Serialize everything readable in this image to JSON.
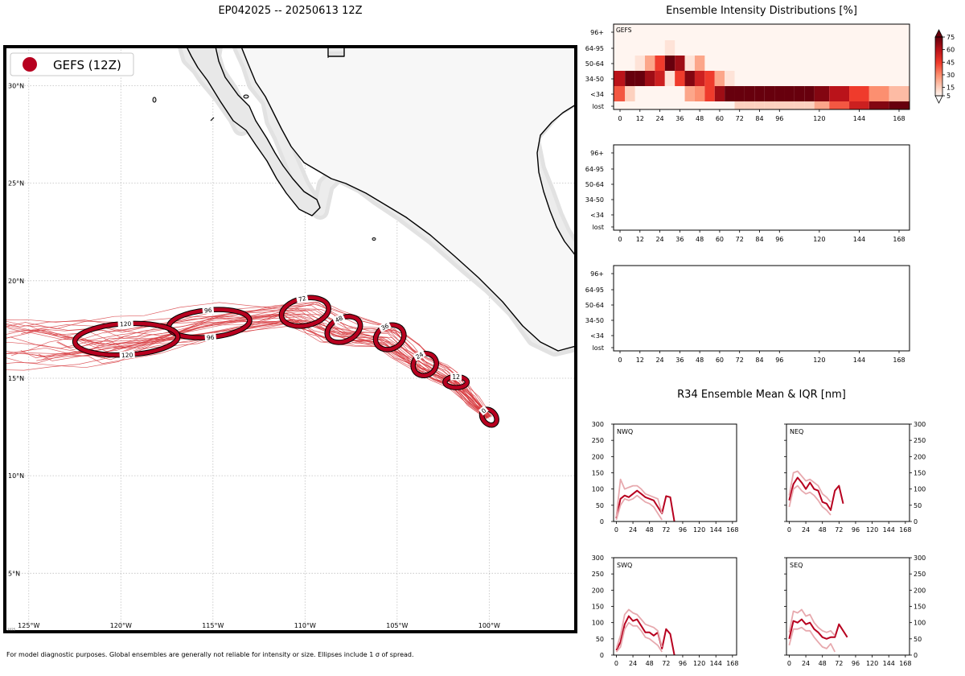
{
  "header": {
    "map_title": "EP042025 -- 20250613 12Z",
    "intensity_title": "Ensemble Intensity Distributions [%]",
    "r34_title": "R34 Ensemble Mean & IQR [nm]",
    "footer": "For model diagnostic purposes. Global ensembles are generally not reliable for intensity or size. Ellipses include 1 σ of spread.",
    "credit": "2025  "
  },
  "chart_data": [
    {
      "type": "map-track",
      "name": "track-map",
      "legend": {
        "label": "GEFS (12Z)",
        "placement": "top-left",
        "color": "#b7001f"
      },
      "lon_range": [
        -126.3,
        -95.3
      ],
      "lat_range": [
        2.0,
        32.0
      ],
      "lon_ticks": [
        -125,
        -120,
        -115,
        -110,
        -105,
        -100
      ],
      "lon_tick_labels": [
        "125°W",
        "120°W",
        "115°W",
        "110°W",
        "105°W",
        "100°W"
      ],
      "lat_ticks": [
        30,
        25,
        20,
        15,
        10,
        5
      ],
      "lat_tick_labels": [
        "30°N",
        "25°N",
        "20°N",
        "15°N",
        "10°N",
        "5°N"
      ],
      "grid": true,
      "track_color": "#d6343a",
      "ellipse_color": "#b7001f",
      "ellipses": [
        {
          "hour": "0",
          "lon": -100.0,
          "lat": 13.0,
          "rx": 0.35,
          "ry": 0.45,
          "rot": -40,
          "labels": [
            "0"
          ]
        },
        {
          "hour": "12",
          "lon": -101.8,
          "lat": 14.8,
          "rx": 0.6,
          "ry": 0.28,
          "rot": 0,
          "labels": [
            "12"
          ]
        },
        {
          "hour": "24",
          "lon": -103.5,
          "lat": 15.7,
          "rx": 0.65,
          "ry": 0.55,
          "rot": -30,
          "labels": [
            "24"
          ]
        },
        {
          "hour": "36",
          "lon": -105.4,
          "lat": 17.1,
          "rx": 0.8,
          "ry": 0.6,
          "rot": -25,
          "labels": [
            "36"
          ]
        },
        {
          "hour": "48",
          "lon": -107.9,
          "lat": 17.5,
          "rx": 0.95,
          "ry": 0.6,
          "rot": -25,
          "labels": [
            "48"
          ]
        },
        {
          "hour": "72",
          "lon": -110.0,
          "lat": 18.4,
          "rx": 1.3,
          "ry": 0.7,
          "rot": -12,
          "labels": [
            "72"
          ]
        },
        {
          "hour": "96",
          "lon": -115.2,
          "lat": 17.8,
          "rx": 2.2,
          "ry": 0.7,
          "rot": -5,
          "labels": [
            "96",
            "96"
          ]
        },
        {
          "hour": "120",
          "lon": -119.7,
          "lat": 17.0,
          "rx": 2.8,
          "ry": 0.8,
          "rot": -3,
          "labels": [
            "120",
            "120"
          ]
        }
      ]
    },
    {
      "type": "heatmap",
      "name": "intensity-gefs",
      "label": "GEFS",
      "x_ticks": [
        0,
        12,
        24,
        36,
        48,
        60,
        72,
        84,
        96,
        120,
        144,
        168
      ],
      "y_categories": [
        "96+",
        "64-95",
        "50-64",
        "34-50",
        "<34",
        "lost"
      ],
      "hours": [
        0,
        6,
        12,
        18,
        24,
        30,
        36,
        42,
        48,
        54,
        60,
        66,
        72,
        78,
        84,
        90,
        96,
        102,
        108,
        114,
        120,
        132,
        144,
        156,
        168
      ],
      "values": {
        "96+": [
          0,
          0,
          0,
          0,
          0,
          0,
          0,
          0,
          0,
          0,
          0,
          0,
          0,
          0,
          0,
          0,
          0,
          0,
          0,
          0,
          0,
          0,
          0,
          0,
          0
        ],
        "64-95": [
          0,
          0,
          0,
          0,
          0,
          10,
          0,
          0,
          0,
          0,
          0,
          0,
          0,
          0,
          0,
          0,
          0,
          0,
          0,
          0,
          0,
          0,
          0,
          0,
          0
        ],
        "50-64": [
          0,
          0,
          10,
          25,
          45,
          80,
          65,
          10,
          25,
          0,
          0,
          0,
          0,
          0,
          0,
          0,
          0,
          0,
          0,
          0,
          0,
          0,
          0,
          0,
          0
        ],
        "34-50": [
          60,
          85,
          85,
          65,
          55,
          10,
          45,
          70,
          55,
          45,
          25,
          10,
          0,
          0,
          0,
          0,
          0,
          0,
          0,
          0,
          0,
          0,
          0,
          0,
          0
        ],
        "<34": [
          40,
          15,
          0,
          0,
          0,
          0,
          0,
          25,
          30,
          45,
          65,
          80,
          85,
          85,
          85,
          85,
          85,
          85,
          85,
          85,
          70,
          60,
          45,
          30,
          20
        ],
        "lost": [
          0,
          0,
          0,
          0,
          0,
          0,
          0,
          0,
          0,
          0,
          0,
          5,
          15,
          15,
          15,
          15,
          15,
          15,
          15,
          15,
          25,
          40,
          55,
          70,
          80
        ]
      },
      "colorbar": {
        "ticks": [
          5,
          15,
          30,
          45,
          60,
          75
        ],
        "range": [
          5,
          75
        ],
        "extend": "both"
      }
    },
    {
      "type": "heatmap",
      "name": "intensity-empty-1",
      "x_ticks": [
        0,
        12,
        24,
        36,
        48,
        60,
        72,
        84,
        96,
        120,
        144,
        168
      ],
      "y_categories": [
        "96+",
        "64-95",
        "50-64",
        "34-50",
        "<34",
        "lost"
      ],
      "values": {}
    },
    {
      "type": "heatmap",
      "name": "intensity-empty-2",
      "x_ticks": [
        0,
        12,
        24,
        36,
        48,
        60,
        72,
        84,
        96,
        120,
        144,
        168
      ],
      "y_categories": [
        "96+",
        "64-95",
        "50-64",
        "34-50",
        "<34",
        "lost"
      ],
      "values": {}
    },
    {
      "type": "line",
      "name": "r34-nwq",
      "label": "NWQ",
      "x": [
        0,
        6,
        12,
        18,
        24,
        30,
        36,
        42,
        48,
        54,
        60,
        66,
        72,
        78,
        84
      ],
      "xlim": [
        -4,
        174
      ],
      "ylim": [
        0,
        300
      ],
      "x_ticks": [
        0,
        24,
        48,
        72,
        96,
        120,
        144,
        168
      ],
      "y_ticks": [
        0,
        50,
        100,
        150,
        200,
        250,
        300
      ],
      "series": [
        {
          "role": "mean",
          "values": [
            10,
            70,
            80,
            75,
            85,
            95,
            85,
            75,
            70,
            65,
            45,
            25,
            78,
            75,
            0
          ]
        },
        {
          "role": "q75",
          "values": [
            15,
            130,
            100,
            105,
            110,
            110,
            100,
            85,
            80,
            75,
            70,
            25,
            null,
            null,
            null
          ]
        },
        {
          "role": "q25",
          "values": [
            5,
            50,
            70,
            65,
            70,
            80,
            70,
            60,
            55,
            45,
            25,
            5,
            null,
            null,
            null
          ]
        }
      ]
    },
    {
      "type": "line",
      "name": "r34-neq",
      "label": "NEQ",
      "x": [
        0,
        6,
        12,
        18,
        24,
        30,
        36,
        42,
        48,
        54,
        60,
        66,
        72,
        78,
        84
      ],
      "xlim": [
        -4,
        174
      ],
      "ylim": [
        0,
        300
      ],
      "x_ticks": [
        0,
        24,
        48,
        72,
        96,
        120,
        144,
        168
      ],
      "y_ticks": [
        0,
        50,
        100,
        150,
        200,
        250,
        300
      ],
      "series": [
        {
          "role": "mean",
          "values": [
            65,
            115,
            135,
            120,
            100,
            120,
            100,
            95,
            60,
            55,
            35,
            95,
            110,
            55,
            null
          ]
        },
        {
          "role": "q75",
          "values": [
            80,
            150,
            155,
            140,
            125,
            130,
            120,
            110,
            85,
            75,
            60,
            null,
            null,
            null,
            null
          ]
        },
        {
          "role": "q25",
          "values": [
            45,
            100,
            110,
            95,
            85,
            90,
            80,
            65,
            45,
            35,
            20,
            null,
            null,
            null,
            null
          ]
        }
      ]
    },
    {
      "type": "line",
      "name": "r34-swq",
      "label": "SWQ",
      "x": [
        0,
        6,
        12,
        18,
        24,
        30,
        36,
        42,
        48,
        54,
        60,
        66,
        72,
        78,
        84
      ],
      "xlim": [
        -4,
        174
      ],
      "ylim": [
        0,
        300
      ],
      "x_ticks": [
        0,
        24,
        48,
        72,
        96,
        120,
        144,
        168
      ],
      "y_ticks": [
        0,
        50,
        100,
        150,
        200,
        250,
        300
      ],
      "series": [
        {
          "role": "mean",
          "values": [
            15,
            40,
            95,
            120,
            105,
            110,
            90,
            70,
            70,
            60,
            70,
            20,
            80,
            65,
            0
          ]
        },
        {
          "role": "q75",
          "values": [
            20,
            60,
            125,
            140,
            130,
            125,
            110,
            95,
            90,
            85,
            75,
            25,
            null,
            null,
            null
          ]
        },
        {
          "role": "q25",
          "values": [
            10,
            25,
            80,
            100,
            90,
            90,
            75,
            55,
            50,
            40,
            30,
            10,
            null,
            null,
            null
          ]
        }
      ]
    },
    {
      "type": "line",
      "name": "r34-seq",
      "label": "SEQ",
      "x": [
        0,
        6,
        12,
        18,
        24,
        30,
        36,
        42,
        48,
        54,
        60,
        66,
        72,
        78,
        84
      ],
      "xlim": [
        -4,
        174
      ],
      "ylim": [
        0,
        300
      ],
      "x_ticks": [
        0,
        24,
        48,
        72,
        96,
        120,
        144,
        168
      ],
      "y_ticks": [
        0,
        50,
        100,
        150,
        200,
        250,
        300
      ],
      "series": [
        {
          "role": "mean",
          "values": [
            50,
            105,
            100,
            110,
            95,
            100,
            80,
            70,
            55,
            50,
            55,
            55,
            95,
            75,
            55
          ]
        },
        {
          "role": "q75",
          "values": [
            70,
            135,
            130,
            140,
            120,
            125,
            100,
            85,
            75,
            70,
            75,
            60,
            null,
            null,
            null
          ]
        },
        {
          "role": "q25",
          "values": [
            30,
            80,
            80,
            85,
            75,
            75,
            55,
            40,
            25,
            20,
            35,
            10,
            null,
            null,
            null
          ]
        }
      ]
    }
  ]
}
